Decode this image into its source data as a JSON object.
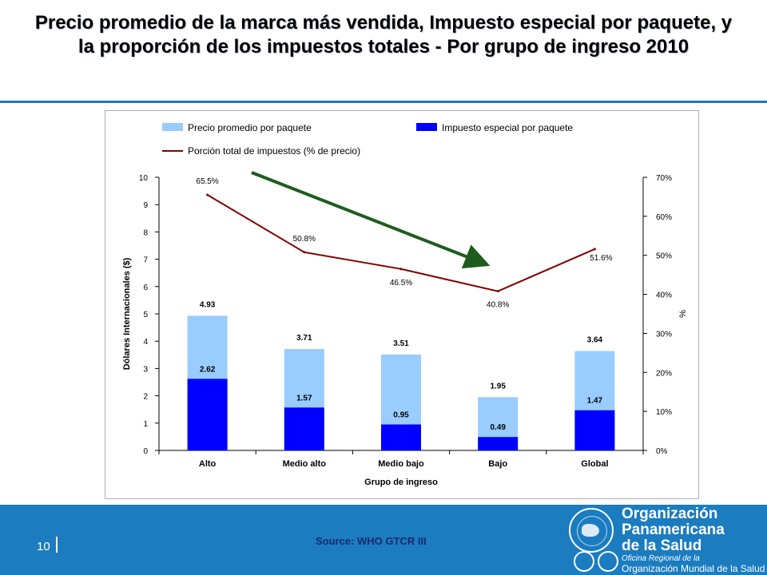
{
  "title": "Precio promedio de la marca más vendida, Impuesto especial por paquete, y la proporción de los impuestos totales - Por grupo de ingreso 2010",
  "footer": {
    "page_number": "10",
    "source": "Source: WHO GTCR III",
    "org_line1": "Organización",
    "org_line2": "Panamericana",
    "org_line3": "de la Salud",
    "org_sub1": "Oficina Regional de la",
    "org_sub2": "Organización Mundial de la Salud"
  },
  "colors": {
    "price_bar": "#99ccff",
    "tax_bar": "#0000ff",
    "tax_share_line": "#800000",
    "trend_arrow": "#1e5c1e",
    "footer_bg": "#1b7cc0"
  },
  "chart_data": {
    "type": "bar",
    "categories": [
      "Alto",
      "Medio alto",
      "Medio bajo",
      "Bajo",
      "Global"
    ],
    "series": [
      {
        "name": "Precio promedio por paquete",
        "type": "bar",
        "axis": "left",
        "values": [
          4.93,
          3.71,
          3.51,
          1.95,
          3.64
        ],
        "labels": [
          "4.93",
          "3.71",
          "3.51",
          "1.95",
          "3.64"
        ]
      },
      {
        "name": "Impuesto especial por paquete",
        "type": "bar",
        "axis": "left",
        "values": [
          2.62,
          1.57,
          0.95,
          0.49,
          1.47
        ],
        "labels": [
          "2.62",
          "1.57",
          "0.95",
          "0.49",
          "1.47"
        ]
      },
      {
        "name": "Porción total de impuestos (% de precio)",
        "type": "line",
        "axis": "right",
        "values": [
          65.5,
          50.8,
          46.5,
          40.8,
          51.6
        ],
        "labels": [
          "65.5%",
          "50.8%",
          "46.5%",
          "40.8%",
          "51.6%"
        ]
      }
    ],
    "xlabel": "Grupo de ingreso",
    "ylabel": "Dólares Internacionales ($)",
    "ylabel_right": "%",
    "ylim": [
      0,
      10
    ],
    "ylim_right": [
      0,
      70
    ],
    "yticks": [
      "0",
      "1",
      "2",
      "3",
      "4",
      "5",
      "6",
      "7",
      "8",
      "9",
      "10"
    ],
    "yticks_right": [
      "0%",
      "10%",
      "20%",
      "30%",
      "40%",
      "50%",
      "60%",
      "70%"
    ],
    "legend_position": "top",
    "grid": false,
    "annotation": "downward trend arrow"
  }
}
